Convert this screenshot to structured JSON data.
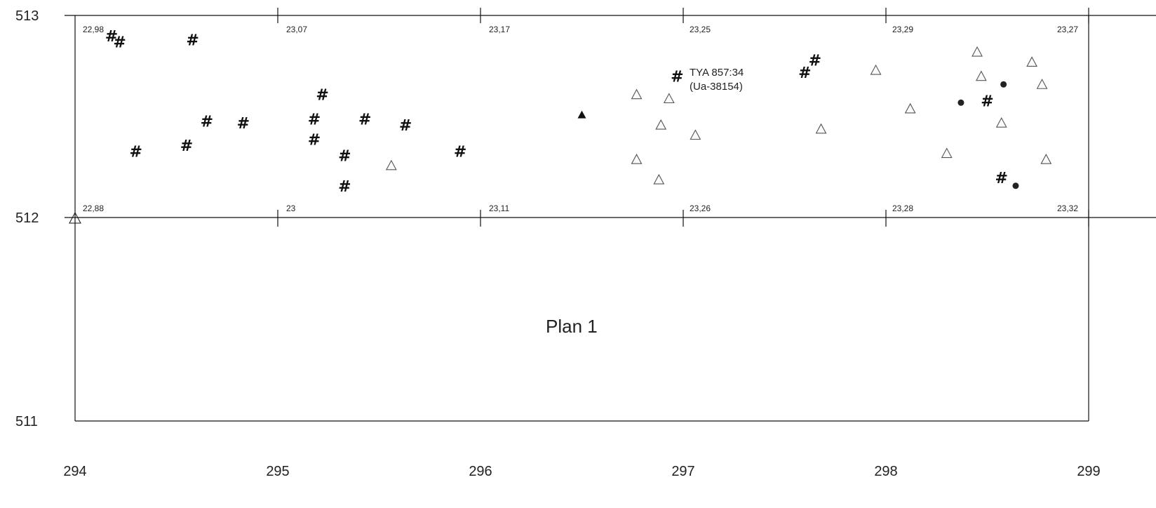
{
  "plan_title": "Plan 1",
  "x_ticks": [
    "294",
    "295",
    "296",
    "297",
    "298",
    "299"
  ],
  "y_ticks": [
    "513",
    "512",
    "511"
  ],
  "top_elevations": [
    "22,98",
    "23,07",
    "23,17",
    "23,25",
    "23,29",
    "23,27"
  ],
  "bottom_elevations": [
    "22,88",
    "23",
    "23,11",
    "23,26",
    "23,28",
    "23,32"
  ],
  "annotation": {
    "line1": "TYA 857:34",
    "line2": "(Ua-38154)"
  },
  "symbols": {
    "hash": "hash-symbol",
    "open_triangle": "open-triangle-symbol",
    "filled_triangle": "filled-triangle-symbol",
    "dot": "filled-circle-symbol"
  },
  "colors": {
    "lines": "#111111",
    "open_triangle_stroke": "#555555"
  },
  "chart_data": {
    "type": "scatter",
    "title": "Plan 1",
    "xlim": [
      294,
      299
    ],
    "ylim": [
      511,
      513
    ],
    "grid_rows": [
      512,
      513
    ],
    "hash": [
      [
        294.18,
        512.9
      ],
      [
        294.22,
        512.87
      ],
      [
        294.58,
        512.88
      ],
      [
        294.3,
        512.33
      ],
      [
        294.55,
        512.36
      ],
      [
        294.65,
        512.48
      ],
      [
        294.83,
        512.47
      ],
      [
        295.22,
        512.61
      ],
      [
        295.18,
        512.49
      ],
      [
        295.18,
        512.39
      ],
      [
        295.33,
        512.31
      ],
      [
        295.33,
        512.16
      ],
      [
        295.43,
        512.49
      ],
      [
        295.63,
        512.46
      ],
      [
        295.9,
        512.33
      ],
      [
        296.97,
        512.7
      ],
      [
        297.6,
        512.72
      ],
      [
        297.65,
        512.78
      ],
      [
        298.5,
        512.58
      ],
      [
        298.57,
        512.2
      ]
    ],
    "open_triangle": [
      [
        295.56,
        512.26
      ],
      [
        296.77,
        512.61
      ],
      [
        296.77,
        512.29
      ],
      [
        296.89,
        512.46
      ],
      [
        296.93,
        512.59
      ],
      [
        296.88,
        512.19
      ],
      [
        297.06,
        512.41
      ],
      [
        297.68,
        512.44
      ],
      [
        297.95,
        512.73
      ],
      [
        298.12,
        512.54
      ],
      [
        298.3,
        512.32
      ],
      [
        298.45,
        512.82
      ],
      [
        298.47,
        512.7
      ],
      [
        298.57,
        512.47
      ],
      [
        298.72,
        512.77
      ],
      [
        298.77,
        512.66
      ],
      [
        298.79,
        512.29
      ]
    ],
    "filled_triangle": [
      [
        296.5,
        512.51
      ]
    ],
    "dot": [
      [
        298.37,
        512.57
      ],
      [
        298.58,
        512.66
      ],
      [
        298.64,
        512.16
      ]
    ]
  }
}
